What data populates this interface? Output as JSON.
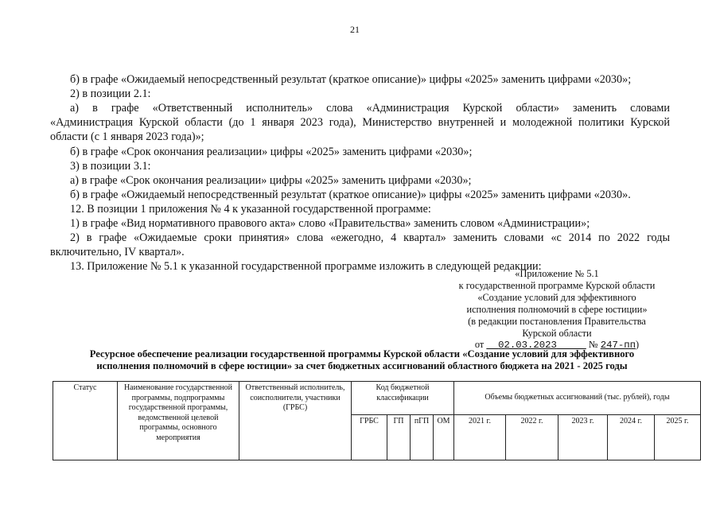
{
  "page_number": "21",
  "body_lines": [
    "б) в графе «Ожидаемый непосредственный результат (краткое описание)» цифры «2025» заменить цифрами «2030»;",
    "2) в позиции 2.1:",
    "а) в графе «Ответственный исполнитель» слова «Администрация Курской области» заменить словами",
    "«Администрация Курской области (до 1 января 2023 года), Министерство внутренней и молодежной политики Курской",
    "области (с 1 января 2023 года)»;",
    "б) в графе «Срок окончания реализации» цифры «2025» заменить цифрами «2030»;",
    "3) в позиции 3.1:",
    "а) в графе «Срок окончания реализации» цифры «2025» заменить цифрами «2030»;",
    "б) в графе «Ожидаемый непосредственный результат (краткое описание)» цифры «2025» заменить цифрами «2030».",
    "12. В позиции 1 приложения № 4 к указанной государственной программе:",
    "1) в графе «Вид нормативного правового акта» слово «Правительства» заменить словом «Администрации»;",
    "2) в графе «Ожидаемые сроки принятия» слова «ежегодно, 4 квартал» заменить словами «с 2014 по 2022 годы",
    "включительно, IV квартал».",
    "13. Приложение № 5.1 к указанной государственной программе изложить в следующей редакции:"
  ],
  "appendix": {
    "lines": [
      "«Приложение № 5.1",
      "к государственной программе Курской области",
      "«Создание условий для эффективного",
      "исполнения полномочий в сфере юстиции»",
      "(в редакции постановления Правительства",
      "Курской области"
    ],
    "from_label": "от",
    "date": "02.03.2023",
    "number_label": "№",
    "number": "247-пп",
    "close": ")"
  },
  "title_lines": [
    "Ресурсное обеспечение реализации государственной программы Курской области «Создание условий для эффективного",
    "исполнения полномочий в сфере юстиции» за счет бюджетных ассигнований областного бюджета на 2021 - 2025 годы"
  ],
  "table": {
    "status": "Статус",
    "name": "Наименование государственной программы, подпрограммы государственной программы, ведомственной целевой программы, основного мероприятия",
    "executor": "Ответственный исполнитель, соисполнители, участники (ГРБС)",
    "budget_code": "Код бюджетной классификации",
    "volumes": "Объемы бюджетных ассигнований (тыс. рублей), годы",
    "codes": [
      "ГРБС",
      "ГП",
      "пГП",
      "ОМ"
    ],
    "years": [
      "2021 г.",
      "2022 г.",
      "2023 г.",
      "2024 г.",
      "2025 г."
    ]
  }
}
